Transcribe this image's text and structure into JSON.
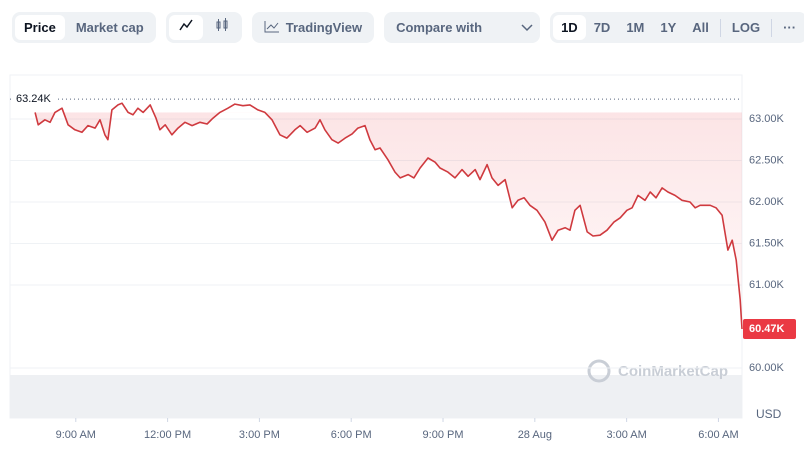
{
  "toolbar": {
    "tabs": [
      "Price",
      "Market cap"
    ],
    "tools": "TradingView",
    "compare": "Compare with",
    "ranges": [
      "1D",
      "7D",
      "1M",
      "1Y",
      "All"
    ],
    "scale": "LOG",
    "more": "···"
  },
  "chart_data": {
    "type": "line",
    "color": "#cf3a3f",
    "watermark": "CoinMarketCap",
    "currency": "USD",
    "reference": {
      "value": 63240,
      "label": "63.24K"
    },
    "last": {
      "value": 60470,
      "label": "60.47K"
    },
    "xlim": [
      6.85,
      30.77
    ],
    "xticks": [
      {
        "value": 9,
        "label": "9:00 AM"
      },
      {
        "value": 12,
        "label": "12:00 PM"
      },
      {
        "value": 15,
        "label": "3:00 PM"
      },
      {
        "value": 18,
        "label": "6:00 PM"
      },
      {
        "value": 21,
        "label": "9:00 PM"
      },
      {
        "value": 24,
        "label": "28 Aug"
      },
      {
        "value": 27,
        "label": "3:00 AM"
      },
      {
        "value": 30,
        "label": "6:00 AM"
      }
    ],
    "ylim": [
      60000,
      63530
    ],
    "yticks": [
      {
        "value": 60000,
        "label": "60.00K"
      },
      {
        "value": 61000,
        "label": "61.00K"
      },
      {
        "value": 61500,
        "label": "61.50K"
      },
      {
        "value": 62000,
        "label": "62.00K"
      },
      {
        "value": 62500,
        "label": "62.50K"
      },
      {
        "value": 63000,
        "label": "63.00K"
      }
    ],
    "grid": true,
    "x": [
      7.67,
      7.77,
      7.99,
      8.16,
      8.32,
      8.55,
      8.75,
      8.97,
      9.2,
      9.4,
      9.63,
      9.79,
      9.95,
      10.05,
      10.18,
      10.38,
      10.51,
      10.71,
      10.87,
      11.03,
      11.2,
      11.43,
      11.62,
      11.75,
      11.92,
      12.14,
      12.34,
      12.57,
      12.8,
      13.06,
      13.29,
      13.48,
      13.71,
      13.97,
      14.2,
      14.46,
      14.69,
      14.95,
      15.18,
      15.41,
      15.67,
      15.9,
      16.16,
      16.33,
      16.56,
      16.82,
      16.98,
      17.14,
      17.37,
      17.57,
      17.8,
      18.03,
      18.22,
      18.45,
      18.61,
      18.78,
      18.94,
      19.2,
      19.43,
      19.6,
      19.86,
      20.05,
      20.25,
      20.51,
      20.74,
      20.9,
      21.16,
      21.39,
      21.62,
      21.82,
      22.05,
      22.21,
      22.44,
      22.6,
      22.8,
      23.03,
      23.26,
      23.45,
      23.65,
      23.84,
      24.07,
      24.33,
      24.56,
      24.76,
      24.99,
      25.15,
      25.31,
      25.48,
      25.71,
      25.9,
      26.13,
      26.36,
      26.59,
      26.79,
      27.01,
      27.18,
      27.37,
      27.6,
      27.77,
      27.96,
      28.16,
      28.35,
      28.58,
      28.81,
      29.07,
      29.24,
      29.4,
      29.73,
      29.92,
      30.12,
      30.31,
      30.45,
      30.58,
      30.71,
      30.77
    ],
    "values": [
      63080,
      62930,
      62990,
      62960,
      63080,
      63130,
      62930,
      62870,
      62840,
      62920,
      62890,
      62990,
      62810,
      62750,
      63110,
      63170,
      63190,
      63080,
      63050,
      63130,
      63080,
      63170,
      63010,
      62870,
      62930,
      62810,
      62890,
      62960,
      62920,
      62960,
      62940,
      63010,
      63080,
      63130,
      63180,
      63160,
      63170,
      63110,
      63080,
      62990,
      62810,
      62770,
      62870,
      62920,
      62840,
      62890,
      62990,
      62870,
      62750,
      62710,
      62770,
      62820,
      62890,
      62920,
      62750,
      62630,
      62650,
      62510,
      62360,
      62290,
      62330,
      62290,
      62410,
      62530,
      62480,
      62410,
      62360,
      62290,
      62390,
      62310,
      62390,
      62270,
      62450,
      62290,
      62200,
      62270,
      61930,
      62020,
      62050,
      61960,
      61900,
      61760,
      61540,
      61660,
      61690,
      61660,
      61900,
      61960,
      61640,
      61590,
      61600,
      61660,
      61760,
      61810,
      61900,
      61930,
      62080,
      62020,
      62120,
      62050,
      62170,
      62120,
      62080,
      62020,
      62000,
      61930,
      61960,
      61960,
      61930,
      61840,
      61420,
      61540,
      61300,
      60820,
      60470
    ]
  }
}
